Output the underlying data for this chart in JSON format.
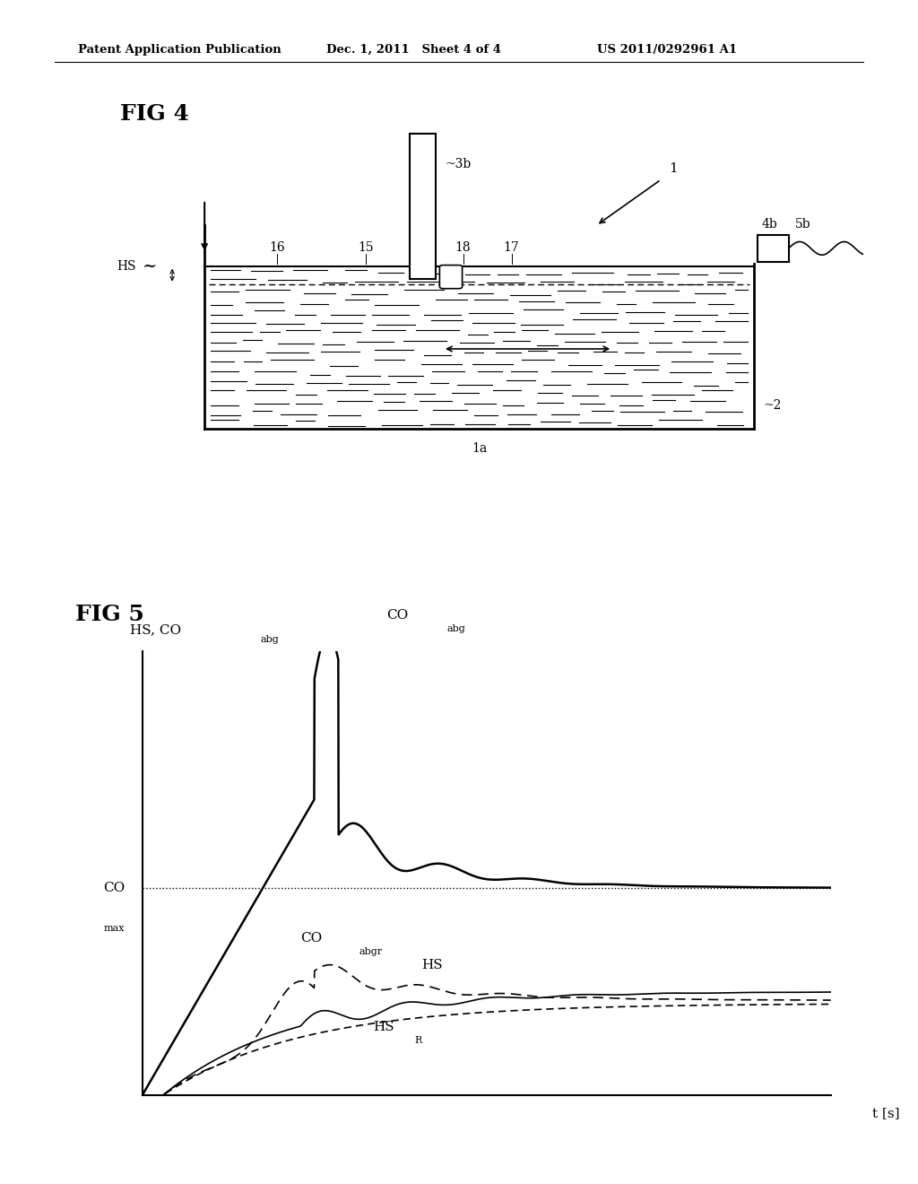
{
  "background_color": "#ffffff",
  "header_left": "Patent Application Publication",
  "header_mid": "Dec. 1, 2011   Sheet 4 of 4",
  "header_right": "US 2011/0292961 A1",
  "fig4_label": "FIG 4",
  "fig5_label": "FIG 5",
  "fig5_ylabel_main": "HS, CO",
  "fig5_ylabel_sub": "abg",
  "fig5_xlabel": "t [s]",
  "co_max_main": "CO",
  "co_max_sub": "max",
  "co_abg_main": "CO",
  "co_abg_sub": "abg",
  "co_abgr_main": "CO",
  "co_abgr_sub": "abgr",
  "hs_label": "HS",
  "hsr_main": "HS",
  "hsr_sub": "R",
  "label_1": "1",
  "label_1a": "1a",
  "label_2": "2",
  "label_3b": "3b",
  "label_4b": "4b",
  "label_5b": "5b",
  "label_15": "15",
  "label_16": "16",
  "label_17": "17",
  "label_18": "18",
  "label_HS": "HS"
}
